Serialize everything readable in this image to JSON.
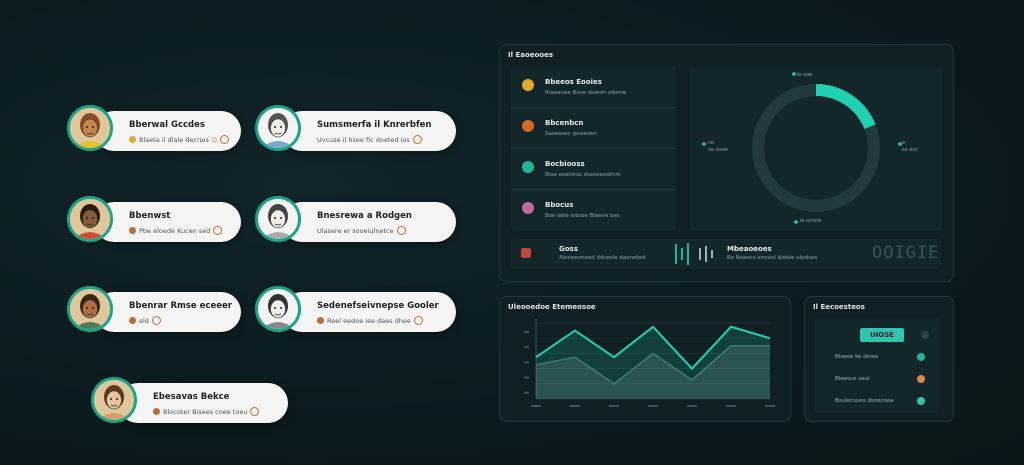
{
  "profiles": [
    {
      "name": "Bberwal Gccdes",
      "sub": "Blaeta il dlale decrios",
      "tail": "O",
      "dot": "yellow"
    },
    {
      "name": "Sumsmerfa il Knrerbfen",
      "sub": "Uvcuse il hsee fic doeted ios",
      "tail": "",
      "dot": "none"
    },
    {
      "name": "Bbenwst",
      "sub": "Pbe eloede Kucen sed",
      "tail": "",
      "dot": "orange"
    },
    {
      "name": "Bnesrewa a Rodgen",
      "sub": "Ulasere er sooeiulnetce",
      "tail": "",
      "dot": "none"
    },
    {
      "name": "Bbenrar Rmse eceeer",
      "sub": "eld",
      "tail": "",
      "dot": "orange"
    },
    {
      "name": "Sedenefseivnepse Gooler",
      "sub": "Reel eedoe iee daes dhee",
      "tail": "",
      "dot": "orange"
    },
    {
      "name": "Ebesavas Bekce",
      "sub": "Blocoter Bisees coee toeu",
      "tail": "",
      "dot": "orange"
    }
  ],
  "top_panel": {
    "title": "Il Eaoeooes",
    "list": [
      {
        "title": "Bbeeos Eooies",
        "sub": "Rlaeenae Bose dsanm sdome",
        "color": "#e5a92a"
      },
      {
        "title": "Bbcenbcn",
        "sub": "Saoessec gowedsn",
        "color": "#d36a2a"
      },
      {
        "title": "Bocbiooss",
        "sub": "Blae eeelorsc doesseadmm",
        "color": "#1fb69a"
      },
      {
        "title": "Bbocus",
        "sub": "Boe dele eduoe Blaeve bes",
        "color": "#c06aa0"
      }
    ],
    "donut": {
      "top_label": "le ooe",
      "left_label": "ce",
      "left_sub": "se sisoe",
      "right_label": "e",
      "right_sub": "se ecc",
      "bottom_label": "le ociore",
      "value": 0.19
    },
    "footer": {
      "left_title": "Goss",
      "left_sub": "Aleceeoneed ddcesle daoneted",
      "mid_title": "Mbeaoeoes",
      "mid_sub": "Be Beaocs enovol blebie ulpdses",
      "readout": "OOIGIE"
    }
  },
  "chart_panel": {
    "title": "Uleooedoe Etemeosoe"
  },
  "chart_data": {
    "type": "area",
    "x": [
      0,
      1,
      2,
      3,
      4,
      5,
      6
    ],
    "series": [
      {
        "values": [
          0.55,
          0.9,
          0.55,
          0.95,
          0.4,
          0.95,
          0.8
        ]
      },
      {
        "values": [
          0.45,
          0.55,
          0.2,
          0.6,
          0.25,
          0.7,
          0.7
        ]
      }
    ],
    "ylim": [
      0,
      1
    ],
    "grid": true
  },
  "side_panel": {
    "title": "Il Eecoesteos",
    "badge": "UIOSE",
    "legend": [
      {
        "label": "Blseee ke dmes",
        "color": "#1fb69a"
      },
      {
        "label": "Bleesce seul",
        "color": "#d98a4a"
      },
      {
        "label": "Bsulecsues dsoecoea",
        "color": "#2ec4b0"
      }
    ]
  },
  "colors": {
    "accent": "#1fd1b0",
    "track": "#223a3d"
  }
}
